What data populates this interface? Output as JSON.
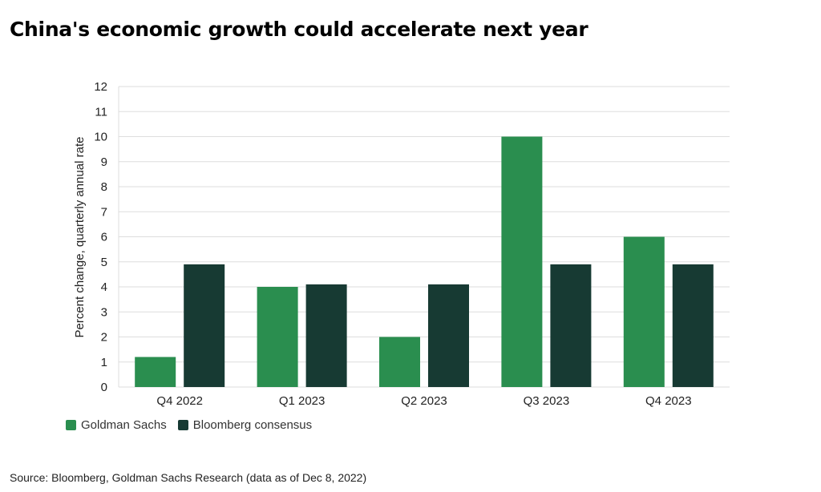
{
  "title": "China's economic growth could accelerate next year",
  "source": "Source: Bloomberg, Goldman Sachs Research (data as of Dec 8, 2022)",
  "colors": {
    "goldman": "#2a8e4f",
    "bloomberg": "#173a33",
    "grid": "#dddddd",
    "axis_text": "#222222"
  },
  "chart_data": {
    "type": "bar",
    "categories": [
      "Q4 2022",
      "Q1 2023",
      "Q2 2023",
      "Q3 2023",
      "Q4 2023"
    ],
    "series": [
      {
        "name": "Goldman Sachs",
        "values": [
          1.2,
          4.0,
          2.0,
          10.0,
          6.0
        ]
      },
      {
        "name": "Bloomberg consensus",
        "values": [
          4.9,
          4.1,
          4.1,
          4.9,
          4.9
        ]
      }
    ],
    "xlabel": "",
    "ylabel": "Percent change, quarterly annual rate",
    "ylim": [
      0,
      12
    ],
    "yticks": [
      0,
      1,
      2,
      3,
      4,
      5,
      6,
      7,
      8,
      9,
      10,
      11,
      12
    ],
    "grid": true,
    "legend_position": "bottom-left"
  }
}
